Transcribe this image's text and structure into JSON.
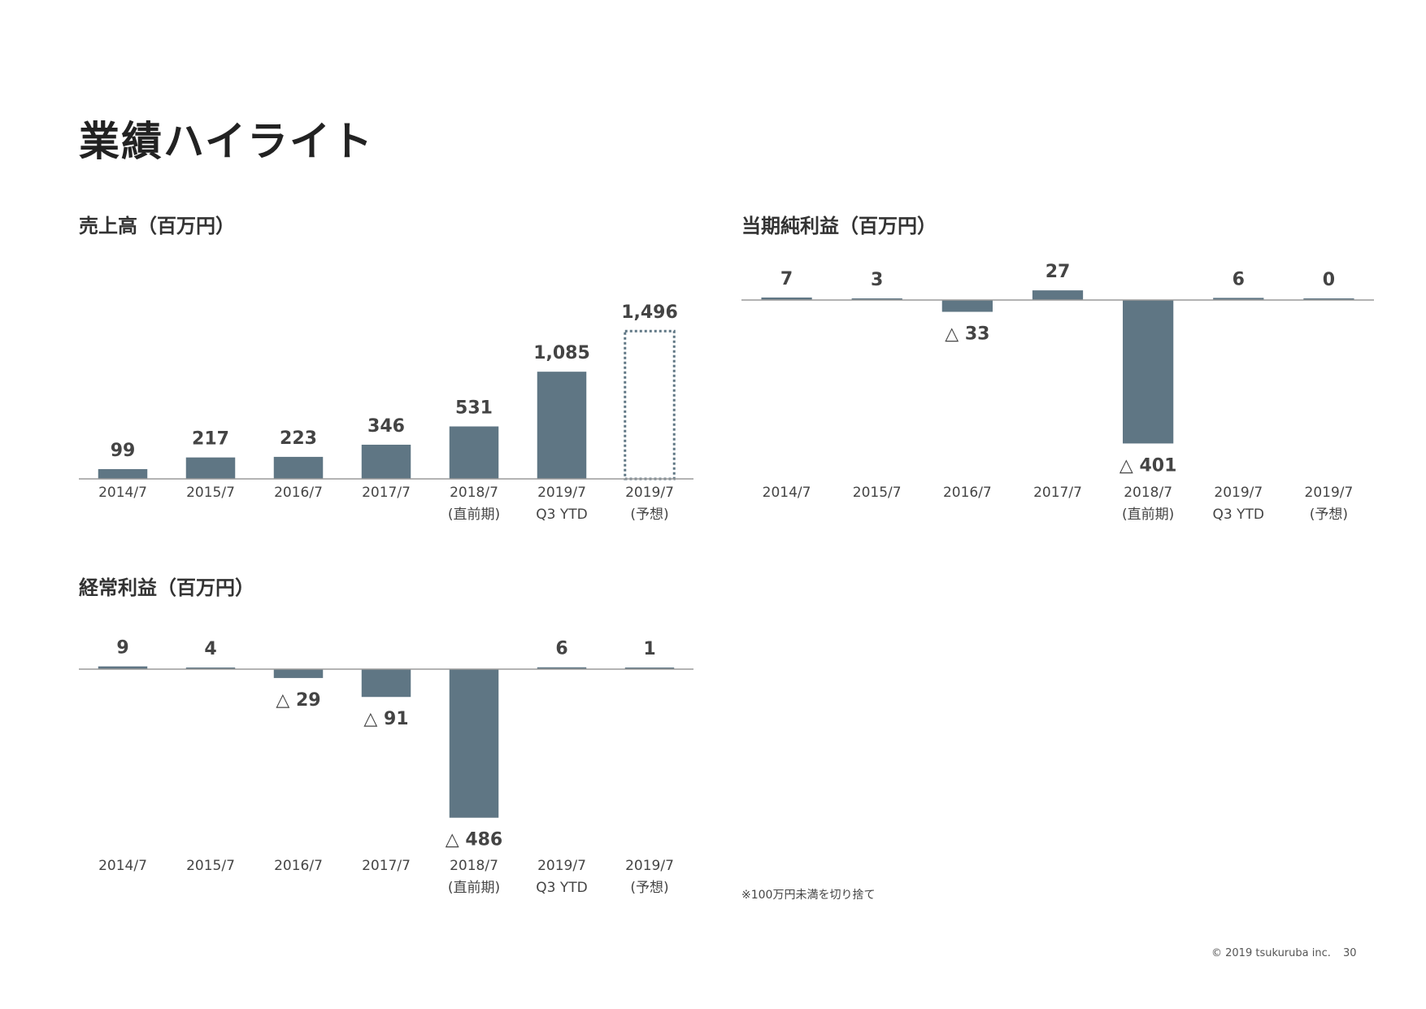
{
  "page": {
    "title": "業績ハイライト",
    "footnote": "※100万円未満を切り捨て",
    "copyright": "© 2019 tsukuruba inc.",
    "page_number": "30"
  },
  "colors": {
    "bar": "#5f7684",
    "axis": "#9a9a9a",
    "label": "#444444",
    "forecast_outline": "#5f7684"
  },
  "negative_prefix": "△ ",
  "chart_data": [
    {
      "id": "sales",
      "type": "bar",
      "title": "売上高（百万円）",
      "categories": [
        "2014/7",
        "2015/7",
        "2016/7",
        "2017/7",
        "2018/7\n(直前期)",
        "2019/7\nQ3 YTD",
        "2019/7\n(予想)"
      ],
      "values": [
        99,
        217,
        223,
        346,
        531,
        1085,
        1496
      ],
      "value_labels": [
        "99",
        "217",
        "223",
        "346",
        "531",
        "1,085",
        "1,496"
      ],
      "forecast_index": 6,
      "forecast_style": "dotted-outline",
      "xlabel": "",
      "ylabel": "",
      "grid": false,
      "legend": "none"
    },
    {
      "id": "net_income",
      "type": "bar",
      "title": "当期純利益（百万円）",
      "categories": [
        "2014/7",
        "2015/7",
        "2016/7",
        "2017/7",
        "2018/7\n(直前期)",
        "2019/7\nQ3 YTD",
        "2019/7\n(予想)"
      ],
      "values": [
        7,
        3,
        -33,
        27,
        -401,
        6,
        0
      ],
      "value_labels": [
        "7",
        "3",
        "△ 33",
        "27",
        "△ 401",
        "6",
        "0"
      ],
      "xlabel": "",
      "ylabel": "",
      "grid": false,
      "legend": "none"
    },
    {
      "id": "ordinary_income",
      "type": "bar",
      "title": "経常利益（百万円）",
      "categories": [
        "2014/7",
        "2015/7",
        "2016/7",
        "2017/7",
        "2018/7\n(直前期)",
        "2019/7\nQ3 YTD",
        "2019/7\n(予想)"
      ],
      "values": [
        9,
        4,
        -29,
        -91,
        -486,
        6,
        1
      ],
      "value_labels": [
        "9",
        "4",
        "△ 29",
        "△ 91",
        "△ 486",
        "6",
        "1"
      ],
      "xlabel": "",
      "ylabel": "",
      "grid": false,
      "legend": "none"
    }
  ]
}
